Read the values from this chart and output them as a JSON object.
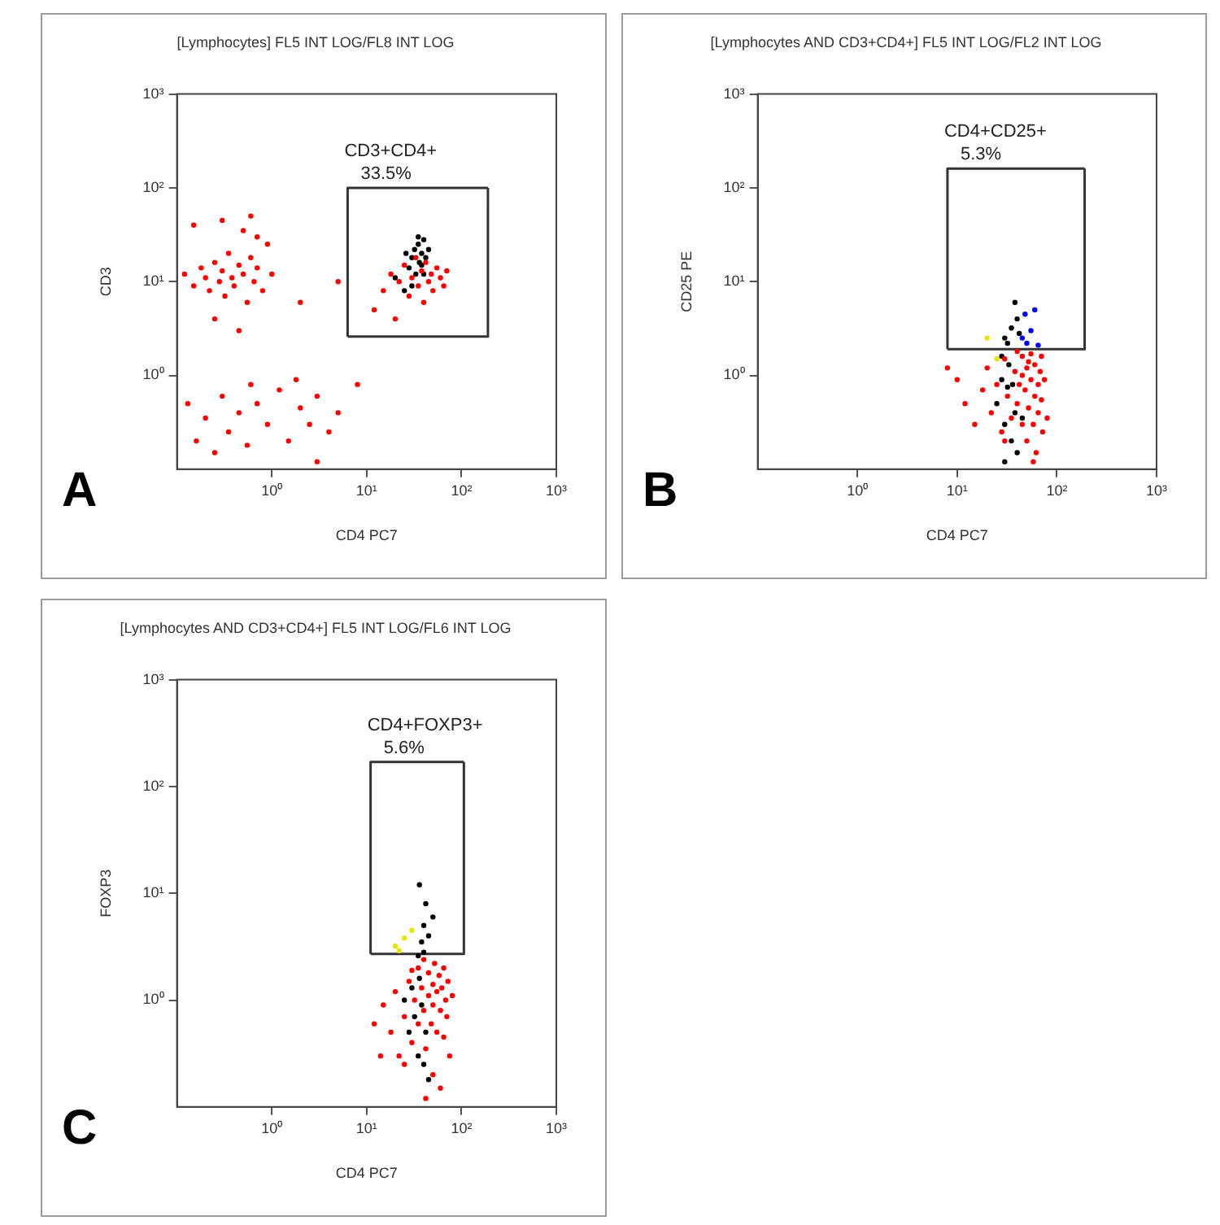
{
  "chart_data": [
    {
      "type": "scatter",
      "title": "[Lymphocytes] FL5 INT LOG/FL8 INT LOG",
      "xlabel": "CD4 PC7",
      "ylabel": "CD3",
      "log": "xy",
      "grid": false,
      "legend": false,
      "marker": "circle",
      "xlim": [
        0.1,
        1000
      ],
      "ylim": [
        0.1,
        1000
      ],
      "xticks": [
        {
          "value": 1,
          "label": "10⁰"
        },
        {
          "value": 10,
          "label": "10¹"
        },
        {
          "value": 100,
          "label": "10²"
        },
        {
          "value": 1000,
          "label": "10³"
        }
      ],
      "yticks": [
        {
          "value": 1,
          "label": "10⁰"
        },
        {
          "value": 10,
          "label": "10¹"
        },
        {
          "value": 100,
          "label": "10²"
        },
        {
          "value": 1000,
          "label": "10³"
        }
      ],
      "annotations": [
        "CD3+CD4+",
        "33.5%",
        "A"
      ],
      "series": [
        {
          "type": "scatter",
          "color": "#ff0000",
          "x": [
            0.12,
            0.15,
            0.18,
            0.2,
            0.22,
            0.25,
            0.28,
            0.3,
            0.32,
            0.35,
            0.38,
            0.4,
            0.45,
            0.5,
            0.55,
            0.6,
            0.65,
            0.7,
            0.8,
            0.9,
            0.15,
            0.3,
            0.5,
            0.25,
            0.45,
            0.7,
            1,
            0.13,
            0.16,
            0.2,
            0.25,
            0.3,
            0.35,
            0.45,
            0.55,
            0.7,
            0.9,
            1.2,
            1.5,
            2,
            2.5,
            3,
            4,
            5,
            1.8,
            0.6,
            12,
            15,
            18,
            20,
            22,
            25,
            28,
            30,
            33,
            35,
            38,
            40,
            42,
            45,
            48,
            50,
            55,
            60,
            65,
            70,
            2,
            5,
            0.6,
            3,
            8
          ],
          "values": [
            12,
            9,
            14,
            11,
            8,
            16,
            10,
            13,
            7,
            20,
            11,
            9,
            15,
            12,
            6,
            18,
            10,
            14,
            8,
            25,
            40,
            45,
            35,
            4,
            3,
            30,
            12,
            0.5,
            0.2,
            0.35,
            0.15,
            0.6,
            0.25,
            0.4,
            0.18,
            0.5,
            0.3,
            0.7,
            0.2,
            0.45,
            0.3,
            0.6,
            0.25,
            0.4,
            0.9,
            0.8,
            5,
            8,
            12,
            4,
            10,
            15,
            7,
            11,
            18,
            9,
            13,
            6,
            16,
            10,
            12,
            8,
            14,
            11,
            9,
            13,
            6,
            10,
            50,
            0.12,
            0.8
          ]
        },
        {
          "type": "scatter",
          "color": "#000000",
          "x": [
            28,
            30,
            32,
            35,
            36,
            38,
            40,
            42,
            33,
            30,
            26,
            45,
            38,
            35,
            40,
            25,
            20
          ],
          "values": [
            14,
            18,
            22,
            25,
            16,
            20,
            28,
            18,
            12,
            9,
            20,
            22,
            15,
            30,
            12,
            8,
            11
          ]
        },
        {
          "type": "line",
          "color": "#333333",
          "marker": "none",
          "x": [
            6.3,
            190,
            190
          ],
          "values": [
            2.6,
            2.6,
            100
          ]
        },
        {
          "type": "line",
          "color": "#333333",
          "marker": "none",
          "x": [
            6.3,
            6.3,
            190
          ],
          "values": [
            2.6,
            100,
            100
          ]
        }
      ]
    },
    {
      "type": "scatter",
      "title": "[Lymphocytes AND CD3+CD4+] FL5 INT LOG/FL2 INT LOG",
      "xlabel": "CD4 PC7",
      "ylabel": "CD25 PE",
      "log": "xy",
      "grid": false,
      "legend": false,
      "marker": "circle",
      "xlim": [
        0.1,
        1000
      ],
      "ylim": [
        0.1,
        1000
      ],
      "xticks": [
        {
          "value": 1,
          "label": "10⁰"
        },
        {
          "value": 10,
          "label": "10¹"
        },
        {
          "value": 100,
          "label": "10²"
        },
        {
          "value": 1000,
          "label": "10³"
        }
      ],
      "yticks": [
        {
          "value": 1,
          "label": "10⁰"
        },
        {
          "value": 10,
          "label": "10¹"
        },
        {
          "value": 100,
          "label": "10²"
        },
        {
          "value": 1000,
          "label": "10³"
        }
      ],
      "annotations": [
        "CD4+CD25+",
        "5.3%",
        "B"
      ],
      "series": [
        {
          "type": "scatter",
          "color": "#ff0000",
          "x": [
            10,
            12,
            15,
            18,
            20,
            22,
            25,
            28,
            30,
            32,
            35,
            38,
            40,
            42,
            45,
            45,
            48,
            50,
            50,
            52,
            55,
            55,
            58,
            60,
            60,
            62,
            65,
            65,
            68,
            70,
            72,
            75,
            80,
            45,
            52,
            58,
            40,
            8,
            30,
            70
          ],
          "values": [
            0.9,
            0.5,
            0.3,
            0.7,
            1.2,
            0.4,
            0.8,
            0.25,
            1.5,
            0.6,
            0.35,
            1.1,
            0.5,
            0.8,
            1.6,
            0.3,
            0.7,
            1.2,
            0.2,
            0.45,
            0.9,
            1.7,
            0.3,
            0.6,
            1.3,
            0.15,
            0.8,
            0.4,
            1.1,
            0.55,
            0.25,
            0.9,
            0.35,
            1,
            1.4,
            0.12,
            1.8,
            1.2,
            0.2,
            1.6
          ]
        },
        {
          "type": "scatter",
          "color": "#000000",
          "x": [
            25,
            28,
            30,
            32,
            33,
            35,
            36,
            38,
            40,
            30,
            35,
            40,
            38,
            32,
            42,
            28,
            45,
            30
          ],
          "values": [
            0.5,
            0.9,
            0.3,
            0.75,
            1.3,
            0.2,
            0.8,
            0.4,
            0.15,
            2.5,
            3.2,
            4,
            6,
            2.2,
            2.8,
            1.6,
            0.35,
            0.12
          ]
        },
        {
          "type": "scatter",
          "color": "#0000ff",
          "x": [
            45,
            55,
            60,
            50,
            65,
            48
          ],
          "values": [
            2.5,
            3,
            5,
            2.2,
            2.1,
            4.5
          ]
        },
        {
          "type": "scatter",
          "color": "#e6e600",
          "x": [
            20,
            25
          ],
          "values": [
            2.5,
            1.5
          ]
        },
        {
          "type": "line",
          "color": "#333333",
          "marker": "none",
          "x": [
            8,
            190,
            190
          ],
          "values": [
            1.9,
            1.9,
            160
          ]
        },
        {
          "type": "line",
          "color": "#333333",
          "marker": "none",
          "x": [
            8,
            8,
            190
          ],
          "values": [
            1.9,
            160,
            160
          ]
        }
      ]
    },
    {
      "type": "scatter",
      "title": "[Lymphocytes AND CD3+CD4+] FL5 INT LOG/FL6 INT LOG",
      "xlabel": "CD4 PC7",
      "ylabel": "FOXP3",
      "log": "xy",
      "grid": false,
      "legend": false,
      "marker": "circle",
      "xlim": [
        0.1,
        1000
      ],
      "ylim": [
        0.1,
        1000
      ],
      "xticks": [
        {
          "value": 1,
          "label": "10⁰"
        },
        {
          "value": 10,
          "label": "10¹"
        },
        {
          "value": 100,
          "label": "10²"
        },
        {
          "value": 1000,
          "label": "10³"
        }
      ],
      "yticks": [
        {
          "value": 1,
          "label": "10⁰"
        },
        {
          "value": 10,
          "label": "10¹"
        },
        {
          "value": 100,
          "label": "10²"
        },
        {
          "value": 1000,
          "label": "10³"
        }
      ],
      "annotations": [
        "CD4+FOXP3+",
        "5.6%",
        "C"
      ],
      "series": [
        {
          "type": "scatter",
          "color": "#ff0000",
          "x": [
            15,
            18,
            20,
            22,
            25,
            28,
            30,
            32,
            35,
            35,
            38,
            40,
            40,
            42,
            45,
            45,
            48,
            50,
            50,
            52,
            55,
            55,
            58,
            60,
            62,
            65,
            65,
            68,
            70,
            72,
            75,
            80,
            12,
            14,
            60,
            50,
            42,
            30,
            25
          ],
          "values": [
            0.9,
            0.5,
            1.2,
            0.3,
            0.7,
            1.5,
            0.4,
            1,
            2,
            0.6,
            1.3,
            0.8,
            2.4,
            0.35,
            1.1,
            1.8,
            0.6,
            1.4,
            0.9,
            2.2,
            0.5,
            1.2,
            1.7,
            0.8,
            1.3,
            0.45,
            2,
            1,
            0.7,
            1.5,
            0.3,
            1.1,
            0.6,
            0.3,
            0.15,
            0.2,
            0.12,
            1.9,
            0.25
          ]
        },
        {
          "type": "scatter",
          "color": "#000000",
          "x": [
            25,
            28,
            30,
            32,
            35,
            36,
            38,
            40,
            42,
            35,
            38,
            40,
            42,
            45,
            36,
            50,
            40,
            45
          ],
          "values": [
            1,
            0.5,
            1.3,
            0.7,
            0.3,
            1.6,
            0.9,
            0.25,
            0.5,
            2.6,
            3.5,
            5,
            8,
            4,
            12,
            6,
            2.8,
            0.18
          ]
        },
        {
          "type": "scatter",
          "color": "#e6e600",
          "x": [
            20,
            25,
            30,
            22
          ],
          "values": [
            3.2,
            3.8,
            4.5,
            2.9
          ]
        },
        {
          "type": "line",
          "color": "#333333",
          "marker": "none",
          "x": [
            11,
            106,
            106
          ],
          "values": [
            2.7,
            2.7,
            170
          ]
        },
        {
          "type": "line",
          "color": "#333333",
          "marker": "none",
          "x": [
            11,
            11,
            106
          ],
          "values": [
            2.7,
            170,
            170
          ]
        }
      ]
    }
  ]
}
